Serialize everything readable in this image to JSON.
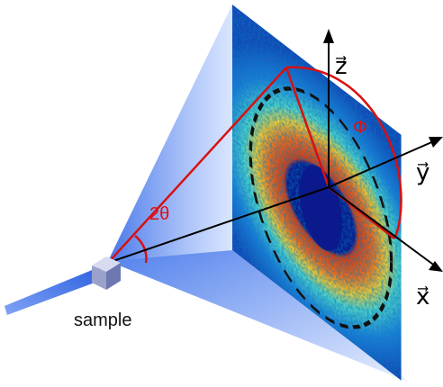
{
  "labels": {
    "z": "z⃗",
    "y": "y⃗",
    "x": "x⃗",
    "phi": "Φ",
    "two_theta": "2θ",
    "sample": "sample"
  }
}
